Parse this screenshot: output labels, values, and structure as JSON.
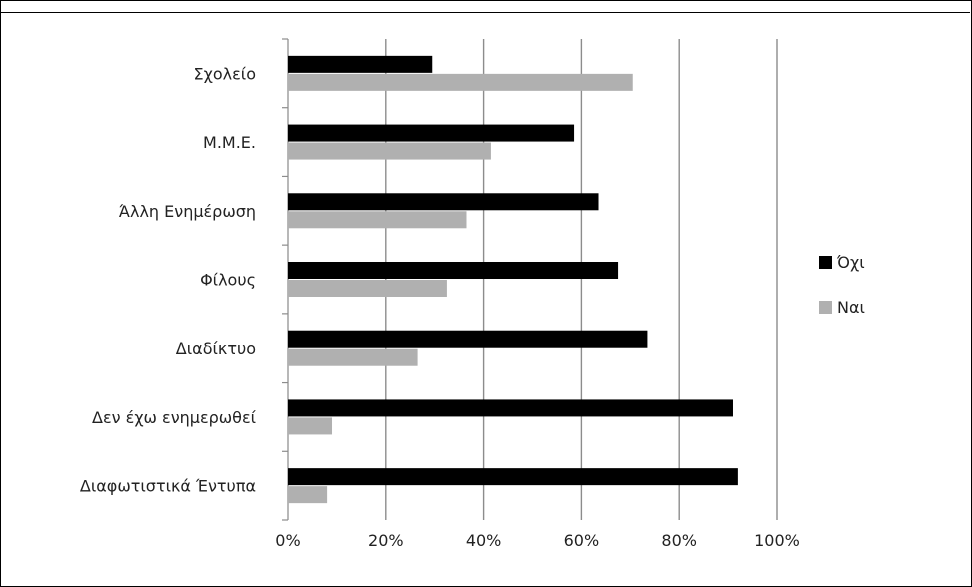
{
  "chart_data": {
    "type": "bar",
    "orientation": "horizontal",
    "categories": [
      "Σχολείο",
      "Μ.Μ.Ε.",
      "Άλλη Ενημέρωση",
      "Φίλους",
      "Διαδίκτυο",
      "Δεν έχω ενημερωθεί",
      "Διαφωτιστικά Έντυπα"
    ],
    "series": [
      {
        "name": "Όχι",
        "color": "#000000",
        "values": [
          29.5,
          58.5,
          63.5,
          67.5,
          73.5,
          91,
          92
        ]
      },
      {
        "name": "Ναι",
        "color": "#b0b0b0",
        "values": [
          70.5,
          41.5,
          36.5,
          32.5,
          26.5,
          9,
          8
        ]
      }
    ],
    "xlim": [
      0,
      100
    ],
    "xticks": [
      "0%",
      "20%",
      "40%",
      "60%",
      "80%",
      "100%"
    ],
    "grid": "vertical",
    "legend": "right",
    "title": "",
    "xlabel": "",
    "ylabel": ""
  }
}
